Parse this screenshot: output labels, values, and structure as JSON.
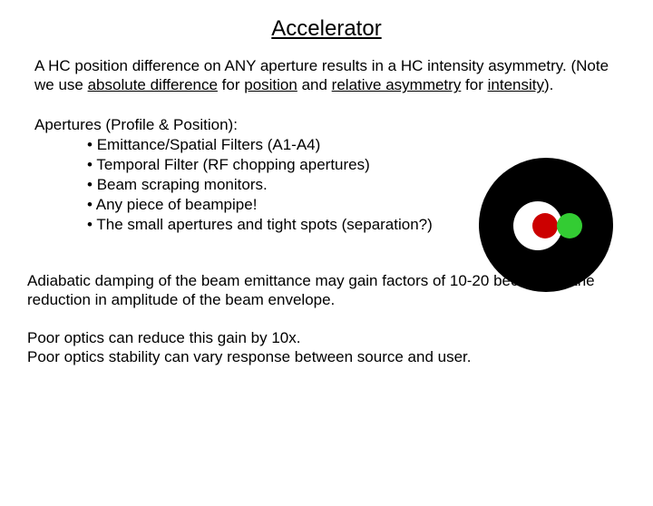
{
  "title": "Accelerator",
  "para1": {
    "pre": "A HC position difference on ANY aperture results in a HC intensity asymmetry. (Note we use ",
    "u1": "absolute difference",
    "mid1": " for ",
    "u2": "position",
    "mid2": " and ",
    "u3": "relative asymmetry",
    "mid3": " for ",
    "u4": "intensity",
    "post": ")."
  },
  "apertures": {
    "header": "Apertures (Profile & Position):",
    "items": [
      "Emittance/Spatial Filters (A1-A4)",
      "Temporal Filter (RF chopping apertures)",
      "Beam scraping monitors.",
      "Any piece of beampipe!",
      "The small apertures and tight spots (separation?)"
    ]
  },
  "para2": "Adiabatic damping of the beam emittance may gain factors of 10-20 because of the reduction in amplitude of the beam envelope.",
  "para3_line1": "Poor optics can reduce this gain by 10x.",
  "para3_line2": "Poor optics stability can vary response between source and user.",
  "diagram": {
    "black": "#000000",
    "white": "#ffffff",
    "red": "#cc0000",
    "green": "#33cc33"
  }
}
